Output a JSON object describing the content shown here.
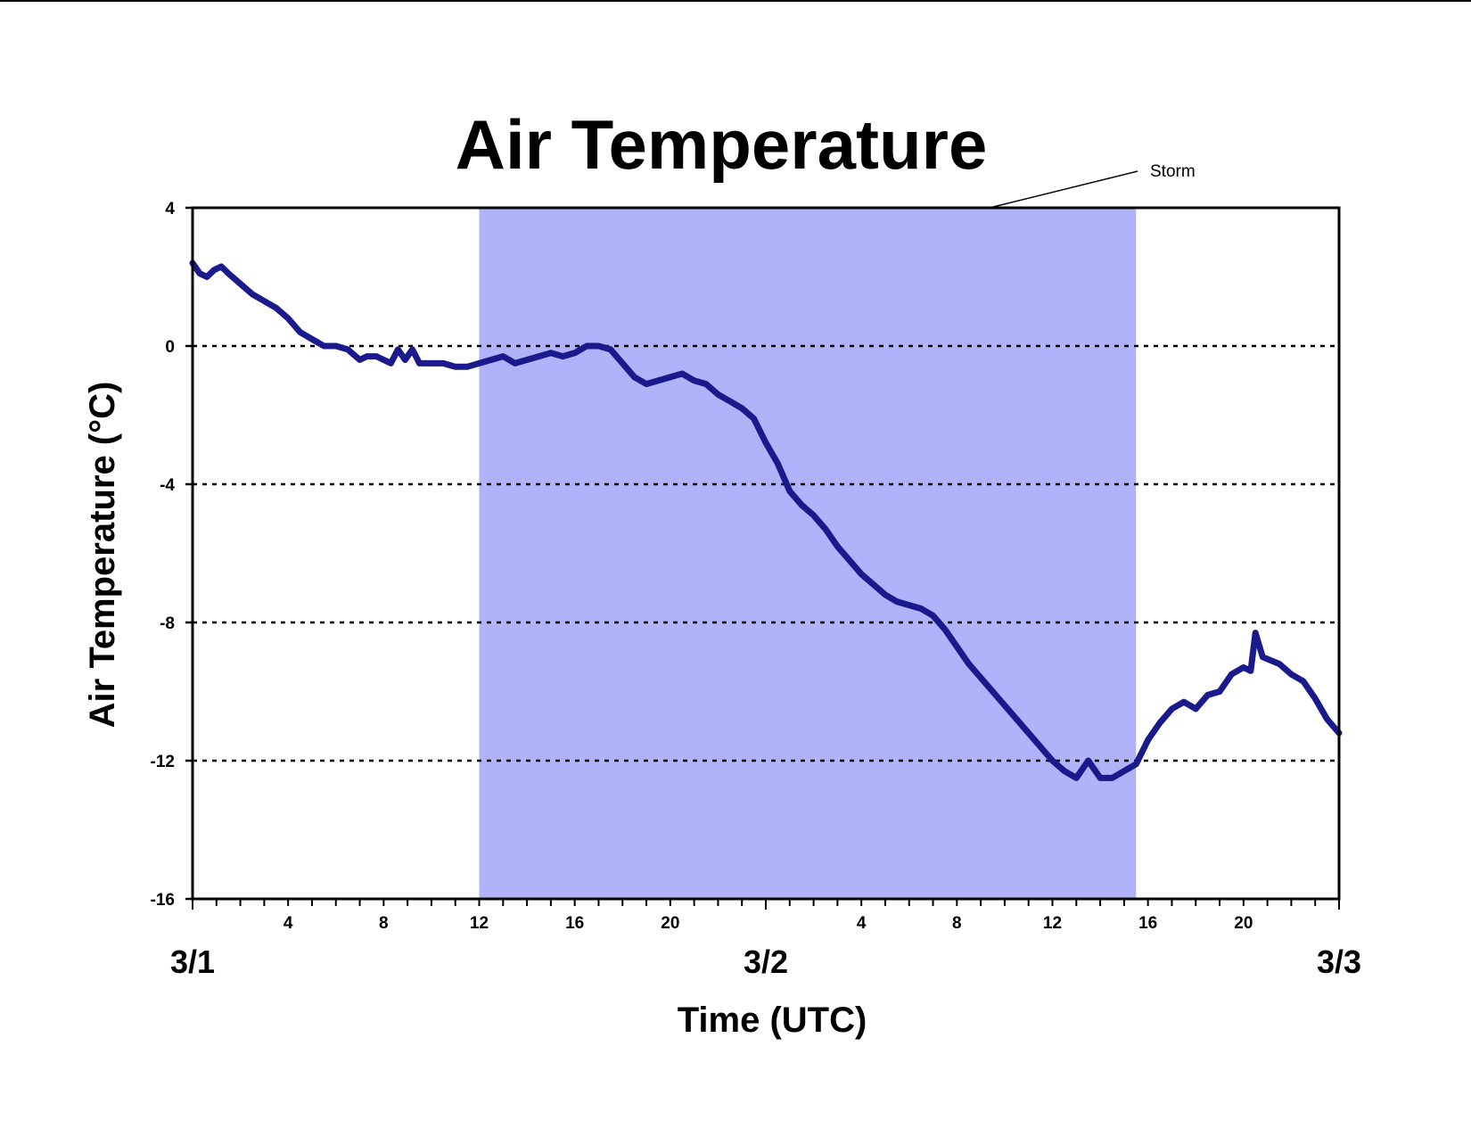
{
  "chart_data": {
    "type": "line",
    "title": "Air Temperature",
    "xlabel": "Time (UTC)",
    "ylabel": "Air Temperature (°C)",
    "ylim": [
      -16,
      4
    ],
    "yticks": [
      "4",
      "0",
      "-4",
      "-8",
      "-12",
      "-16"
    ],
    "y_gridlines": [
      0,
      -4,
      -8,
      -12
    ],
    "grid": "dotted horizontal lines at 0, -4, -8, -12",
    "xlim_hours": [
      0,
      48
    ],
    "x_hour_ticks": [
      {
        "hour": 4,
        "label": "4"
      },
      {
        "hour": 8,
        "label": "8"
      },
      {
        "hour": 12,
        "label": "12"
      },
      {
        "hour": 16,
        "label": "16"
      },
      {
        "hour": 20,
        "label": "20"
      },
      {
        "hour": 28,
        "label": "4"
      },
      {
        "hour": 32,
        "label": "8"
      },
      {
        "hour": 36,
        "label": "12"
      },
      {
        "hour": 40,
        "label": "16"
      },
      {
        "hour": 44,
        "label": "20"
      }
    ],
    "date_labels": [
      {
        "hour": 0,
        "label": "3/1"
      },
      {
        "hour": 24,
        "label": "3/2"
      },
      {
        "hour": 48,
        "label": "3/3"
      }
    ],
    "shaded_region": {
      "label": "Storm",
      "start_hour": 12,
      "end_hour": 39.5,
      "color": "#b0b3fa"
    },
    "line_color": "#1a1a8c",
    "series": [
      {
        "name": "",
        "points": [
          [
            0,
            2.4
          ],
          [
            0.3,
            2.1
          ],
          [
            0.6,
            2.0
          ],
          [
            0.9,
            2.2
          ],
          [
            1.2,
            2.3
          ],
          [
            1.5,
            2.1
          ],
          [
            2,
            1.8
          ],
          [
            2.5,
            1.5
          ],
          [
            3,
            1.3
          ],
          [
            3.5,
            1.1
          ],
          [
            4,
            0.8
          ],
          [
            4.5,
            0.4
          ],
          [
            5,
            0.2
          ],
          [
            5.5,
            0.0
          ],
          [
            6,
            0.0
          ],
          [
            6.5,
            -0.1
          ],
          [
            7,
            -0.4
          ],
          [
            7.3,
            -0.3
          ],
          [
            7.7,
            -0.3
          ],
          [
            8,
            -0.4
          ],
          [
            8.3,
            -0.5
          ],
          [
            8.6,
            -0.1
          ],
          [
            8.9,
            -0.4
          ],
          [
            9.2,
            -0.1
          ],
          [
            9.5,
            -0.5
          ],
          [
            10,
            -0.5
          ],
          [
            10.5,
            -0.5
          ],
          [
            11,
            -0.6
          ],
          [
            11.5,
            -0.6
          ],
          [
            12,
            -0.5
          ],
          [
            12.5,
            -0.4
          ],
          [
            13,
            -0.3
          ],
          [
            13.5,
            -0.5
          ],
          [
            14,
            -0.4
          ],
          [
            14.5,
            -0.3
          ],
          [
            15,
            -0.2
          ],
          [
            15.5,
            -0.3
          ],
          [
            16,
            -0.2
          ],
          [
            16.5,
            0.0
          ],
          [
            17,
            0.0
          ],
          [
            17.5,
            -0.1
          ],
          [
            18,
            -0.5
          ],
          [
            18.5,
            -0.9
          ],
          [
            19,
            -1.1
          ],
          [
            19.5,
            -1.0
          ],
          [
            20,
            -0.9
          ],
          [
            20.5,
            -0.8
          ],
          [
            21,
            -1.0
          ],
          [
            21.5,
            -1.1
          ],
          [
            22,
            -1.4
          ],
          [
            22.5,
            -1.6
          ],
          [
            23,
            -1.8
          ],
          [
            23.5,
            -2.1
          ],
          [
            24,
            -2.8
          ],
          [
            24.5,
            -3.4
          ],
          [
            25,
            -4.2
          ],
          [
            25.5,
            -4.6
          ],
          [
            26,
            -4.9
          ],
          [
            26.5,
            -5.3
          ],
          [
            27,
            -5.8
          ],
          [
            27.5,
            -6.2
          ],
          [
            28,
            -6.6
          ],
          [
            28.5,
            -6.9
          ],
          [
            29,
            -7.2
          ],
          [
            29.5,
            -7.4
          ],
          [
            30,
            -7.5
          ],
          [
            30.5,
            -7.6
          ],
          [
            31,
            -7.8
          ],
          [
            31.5,
            -8.2
          ],
          [
            32,
            -8.7
          ],
          [
            32.5,
            -9.2
          ],
          [
            33,
            -9.6
          ],
          [
            33.5,
            -10.0
          ],
          [
            34,
            -10.4
          ],
          [
            34.5,
            -10.8
          ],
          [
            35,
            -11.2
          ],
          [
            35.5,
            -11.6
          ],
          [
            36,
            -12.0
          ],
          [
            36.5,
            -12.3
          ],
          [
            37,
            -12.5
          ],
          [
            37.5,
            -12.0
          ],
          [
            38,
            -12.5
          ],
          [
            38.5,
            -12.5
          ],
          [
            39,
            -12.3
          ],
          [
            39.5,
            -12.1
          ],
          [
            40,
            -11.4
          ],
          [
            40.5,
            -10.9
          ],
          [
            41,
            -10.5
          ],
          [
            41.5,
            -10.3
          ],
          [
            42,
            -10.5
          ],
          [
            42.5,
            -10.1
          ],
          [
            43,
            -10.0
          ],
          [
            43.5,
            -9.5
          ],
          [
            44,
            -9.3
          ],
          [
            44.3,
            -9.4
          ],
          [
            44.5,
            -8.3
          ],
          [
            44.8,
            -9.0
          ],
          [
            45.5,
            -9.2
          ],
          [
            46,
            -9.5
          ],
          [
            46.5,
            -9.7
          ],
          [
            47,
            -10.2
          ],
          [
            47.5,
            -10.8
          ],
          [
            48,
            -11.2
          ]
        ]
      }
    ]
  }
}
